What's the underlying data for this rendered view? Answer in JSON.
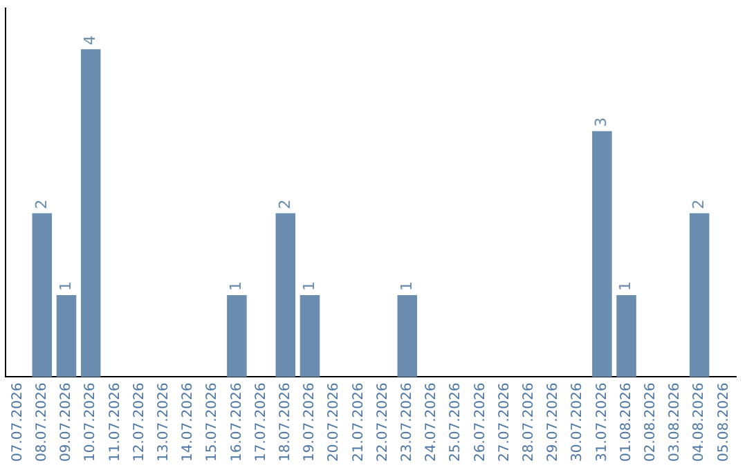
{
  "chart_data": {
    "type": "bar",
    "relative": false,
    "categories": [
      "07.07.2026",
      "08.07.2026",
      "09.07.2026",
      "10.07.2026",
      "11.07.2026",
      "12.07.2026",
      "13.07.2026",
      "14.07.2026",
      "15.07.2026",
      "16.07.2026",
      "17.07.2026",
      "18.07.2026",
      "19.07.2026",
      "20.07.2026",
      "21.07.2026",
      "22.07.2026",
      "23.07.2026",
      "24.07.2026",
      "25.07.2026",
      "26.07.2026",
      "27.07.2026",
      "28.07.2026",
      "29.07.2026",
      "30.07.2026",
      "31.07.2026",
      "01.08.2026",
      "02.08.2026",
      "03.08.2026",
      "04.08.2026",
      "05.08.2026"
    ],
    "values": [
      0,
      2,
      1,
      4,
      0,
      0,
      0,
      0,
      0,
      1,
      0,
      2,
      1,
      0,
      0,
      0,
      1,
      0,
      0,
      0,
      0,
      0,
      0,
      0,
      3,
      1,
      0,
      0,
      2,
      0
    ],
    "value_labels": [
      null,
      "2",
      "1",
      "4",
      null,
      null,
      null,
      null,
      null,
      "1",
      null,
      "2",
      "1",
      null,
      null,
      null,
      "1",
      null,
      null,
      null,
      null,
      null,
      null,
      null,
      "3",
      "1",
      null,
      null,
      "2",
      null
    ],
    "color": "#6a8caf",
    "grid": false,
    "legend": false
  }
}
